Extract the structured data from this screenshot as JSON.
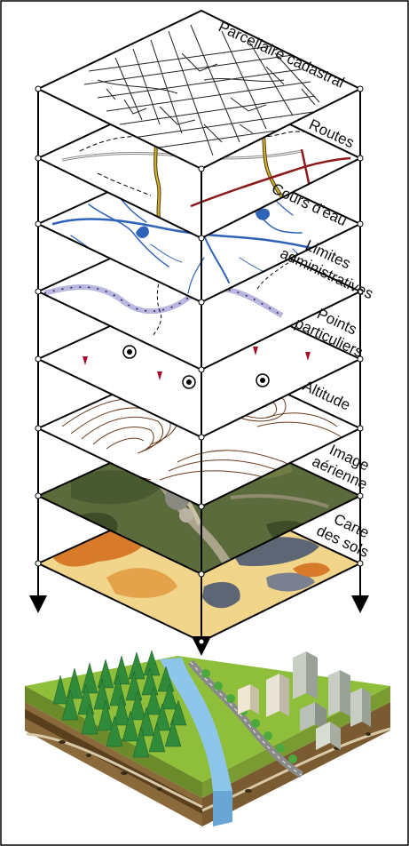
{
  "layers": [
    {
      "label_lines": [
        "Parcellaire cadastral"
      ]
    },
    {
      "label_lines": [
        "Routes"
      ]
    },
    {
      "label_lines": [
        "Cours d'eau"
      ]
    },
    {
      "label_lines": [
        "Limites",
        "administratives"
      ]
    },
    {
      "label_lines": [
        "Points",
        "particuliers"
      ]
    },
    {
      "label_lines": [
        "Altitude"
      ]
    },
    {
      "label_lines": [
        "Image",
        "aérienne"
      ]
    },
    {
      "label_lines": [
        "Carte",
        "des sols"
      ]
    }
  ],
  "colors": {
    "frame": "#000000",
    "water": "#2f63b8",
    "road_main": "#d9b52a",
    "road_red": "#8c1a1a",
    "boundary": "#b9b6e0",
    "point_marker": "#a3122a",
    "contour": "#6b3d1e",
    "aerial": "#5b6b3c",
    "soil_base": "#f1d58a",
    "soil_orange": "#d77b2a",
    "soil_gray": "#5d6675",
    "grass": "#8fbf3a",
    "earth": "#8a6a3a",
    "forest": "#2f8a3a",
    "river": "#8ec5ea"
  },
  "icons": [
    "down-arrow-icon",
    "target-point-icon",
    "pin-marker-icon",
    "building-icon",
    "tree-icon"
  ]
}
